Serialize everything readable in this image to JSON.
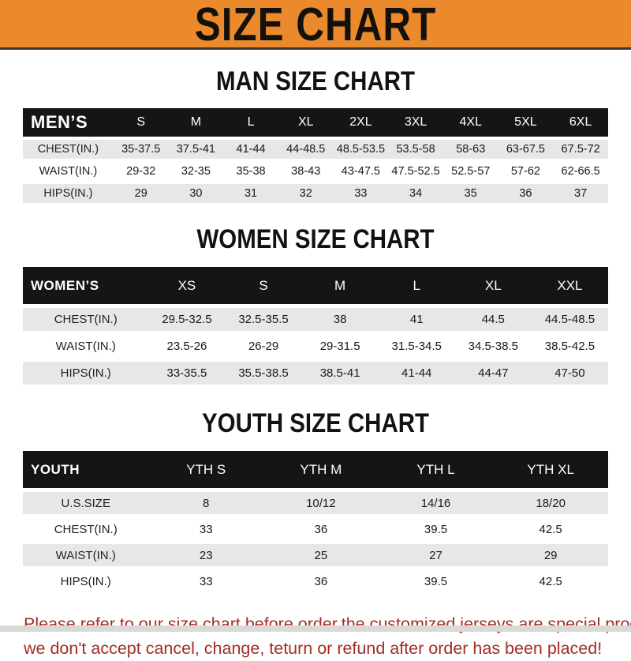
{
  "banner": {
    "title": "SIZE CHART",
    "bg_color": "#EA8A2C",
    "text_color": "#14110d"
  },
  "colors": {
    "table_header_bg": "#151515",
    "table_header_text": "#ffffff",
    "row_shade": "#E7E7E5",
    "notice_text": "#A32C26"
  },
  "sections": [
    {
      "name": "men",
      "heading": "MAN SIZE CHART",
      "header_label": "MEN’S",
      "columns": [
        "S",
        "M",
        "L",
        "XL",
        "2XL",
        "3XL",
        "4XL",
        "5XL",
        "6XL"
      ],
      "rows": [
        {
          "label": "CHEST(IN.)",
          "values": [
            "35-37.5",
            "37.5-41",
            "41-44",
            "44-48.5",
            "48.5-53.5",
            "53.5-58",
            "58-63",
            "63-67.5",
            "67.5-72"
          ]
        },
        {
          "label": "WAIST(IN.)",
          "values": [
            "29-32",
            "32-35",
            "35-38",
            "38-43",
            "43-47.5",
            "47.5-52.5",
            "52.5-57",
            "57-62",
            "62-66.5"
          ]
        },
        {
          "label": "HIPS(IN.)",
          "values": [
            "29",
            "30",
            "31",
            "32",
            "33",
            "34",
            "35",
            "36",
            "37"
          ]
        }
      ]
    },
    {
      "name": "women",
      "heading": "WOMEN SIZE CHART",
      "header_label": "WOMEN’S",
      "columns": [
        "XS",
        "S",
        "M",
        "L",
        "XL",
        "XXL"
      ],
      "rows": [
        {
          "label": "CHEST(IN.)",
          "values": [
            "29.5-32.5",
            "32.5-35.5",
            "38",
            "41",
            "44.5",
            "44.5-48.5"
          ]
        },
        {
          "label": "WAIST(IN.)",
          "values": [
            "23.5-26",
            "26-29",
            "29-31.5",
            "31.5-34.5",
            "34.5-38.5",
            "38.5-42.5"
          ]
        },
        {
          "label": "HIPS(IN.)",
          "values": [
            "33-35.5",
            "35.5-38.5",
            "38.5-41",
            "41-44",
            "44-47",
            "47-50"
          ]
        }
      ]
    },
    {
      "name": "youth",
      "heading": "YOUTH SIZE CHART",
      "header_label": "YOUTH",
      "columns": [
        "YTH S",
        "YTH M",
        "YTH L",
        "YTH XL"
      ],
      "rows": [
        {
          "label": "U.S.SIZE",
          "values": [
            "8",
            "10/12",
            "14/16",
            "18/20"
          ]
        },
        {
          "label": "CHEST(IN.)",
          "values": [
            "33",
            "36",
            "39.5",
            "42.5"
          ]
        },
        {
          "label": "WAIST(IN.)",
          "values": [
            "23",
            "25",
            "27",
            "29"
          ]
        },
        {
          "label": "HIPS(IN.)",
          "values": [
            "33",
            "36",
            "39.5",
            "42.5"
          ]
        }
      ]
    }
  ],
  "footer": {
    "line1": "Please refer to our size chart before order,the customized jerseys are special products,",
    "line2": "we don't accept cancel, change, teturn or refund after order has been placed!"
  }
}
